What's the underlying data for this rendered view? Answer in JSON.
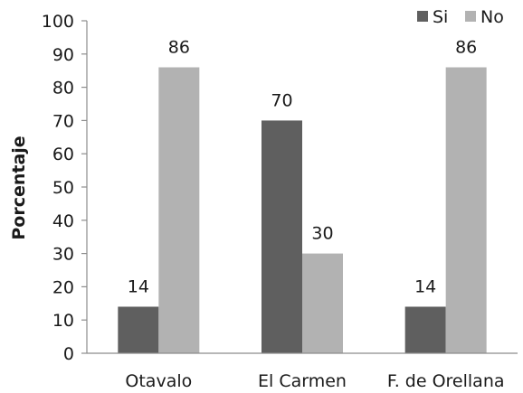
{
  "chart_data": {
    "type": "bar",
    "categories": [
      "Otavalo",
      "El Carmen",
      "F. de Orellana"
    ],
    "series": [
      {
        "name": "Si",
        "values": [
          14,
          70,
          14
        ],
        "color": "#5f5f5f"
      },
      {
        "name": "No",
        "values": [
          86,
          30,
          86
        ],
        "color": "#b2b2b2"
      }
    ],
    "ylabel": "Porcentaje",
    "xlabel": "",
    "ylim": [
      0,
      100
    ],
    "yticks": [
      0,
      10,
      20,
      30,
      40,
      50,
      60,
      70,
      80,
      90,
      100
    ],
    "grid": false,
    "legend": "top-right"
  }
}
